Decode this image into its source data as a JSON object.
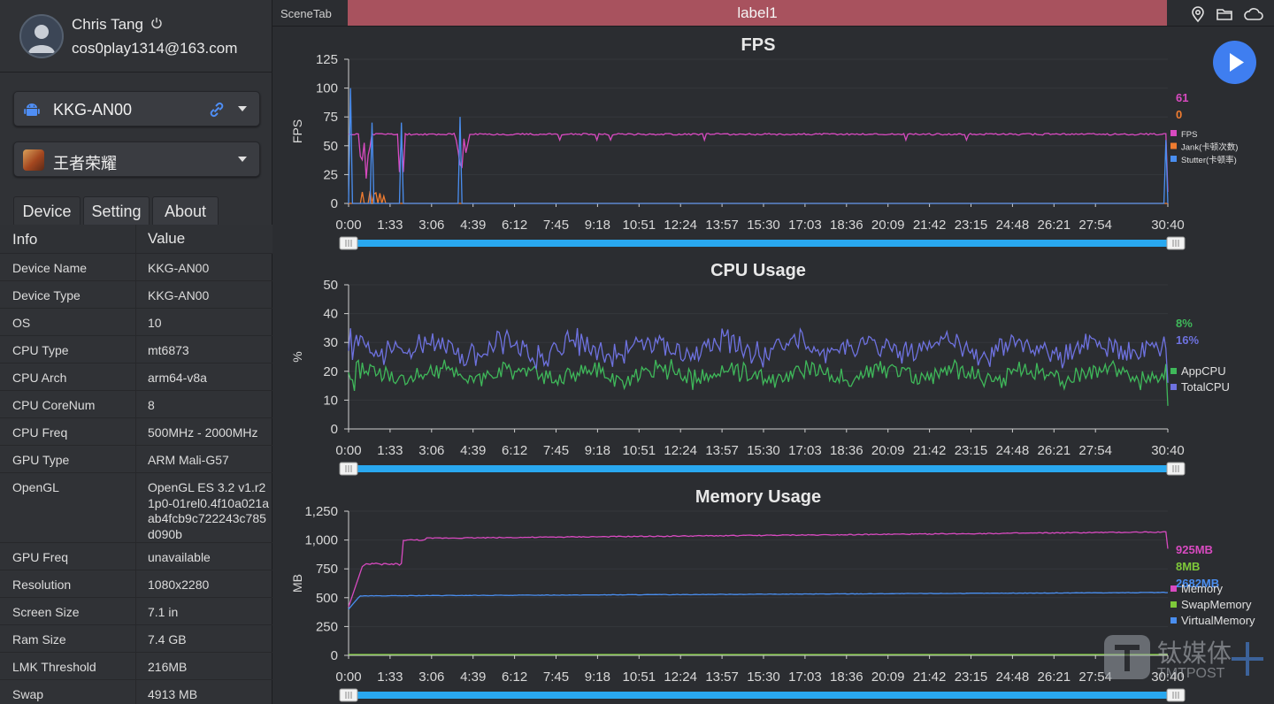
{
  "user": {
    "name": "Chris Tang",
    "email": "cos0play1314@163.com"
  },
  "device_select": {
    "label": "KKG-AN00"
  },
  "app_select": {
    "label": "王者荣耀"
  },
  "tabs": [
    {
      "label": "Device"
    },
    {
      "label": "Setting"
    },
    {
      "label": "About"
    }
  ],
  "info_table": {
    "headers": {
      "key": "Info",
      "value": "Value"
    },
    "rows": [
      {
        "key": "Device Name",
        "value": "KKG-AN00"
      },
      {
        "key": "Device Type",
        "value": "KKG-AN00"
      },
      {
        "key": "OS",
        "value": "10"
      },
      {
        "key": "CPU Type",
        "value": "mt6873"
      },
      {
        "key": "CPU Arch",
        "value": "arm64-v8a"
      },
      {
        "key": "CPU CoreNum",
        "value": "8"
      },
      {
        "key": "CPU Freq",
        "value": "500MHz - 2000MHz"
      },
      {
        "key": "GPU Type",
        "value": "ARM Mali-G57"
      },
      {
        "key": "OpenGL",
        "value": "OpenGL ES 3.2 v1.r21p0-01rel0.4f10a021aab4fcb9c722243c785d090b"
      },
      {
        "key": "GPU Freq",
        "value": "unavailable"
      },
      {
        "key": "Resolution",
        "value": "1080x2280"
      },
      {
        "key": "Screen Size",
        "value": "7.1 in"
      },
      {
        "key": "Ram Size",
        "value": "7.4 GB"
      },
      {
        "key": "LMK Threshold",
        "value": "216MB"
      },
      {
        "key": "Swap",
        "value": "4913 MB"
      }
    ]
  },
  "topbar": {
    "scene_tab": "SceneTab",
    "label": "label1",
    "icons": [
      "location-icon",
      "folder-icon",
      "cloud-icon"
    ]
  },
  "colors": {
    "fps": "#d84ac0",
    "jank": "#f07c30",
    "stutter": "#4a8ef0",
    "app_cpu": "#3fb85a",
    "total_cpu": "#6e72e0",
    "memory": "#d84ac0",
    "swap": "#7ec93a",
    "virtual": "#4a8ef0",
    "label_bar": "#a8525e",
    "slider": "#29a8f0"
  },
  "time_ticks": [
    "0:00",
    "1:33",
    "3:06",
    "4:39",
    "6:12",
    "7:45",
    "9:18",
    "10:51",
    "12:24",
    "13:57",
    "15:30",
    "17:03",
    "18:36",
    "20:09",
    "21:42",
    "23:15",
    "24:48",
    "26:21",
    "27:54",
    "30:40"
  ],
  "chart_data": [
    {
      "type": "line",
      "title": "FPS",
      "ylabel": "FPS",
      "ylim": [
        0,
        125
      ],
      "yticks": [
        "0",
        "25",
        "50",
        "75",
        "100",
        "125"
      ],
      "current_values": [
        "61",
        "0"
      ],
      "series": [
        {
          "name": "FPS",
          "baseline": 60
        },
        {
          "name": "Jank(卡顿次数)",
          "baseline": 0
        },
        {
          "name": "Stutter(卡顿率)",
          "baseline": 0
        }
      ]
    },
    {
      "type": "line",
      "title": "CPU Usage",
      "ylabel": "%",
      "ylim": [
        0,
        50
      ],
      "yticks": [
        "0",
        "10",
        "20",
        "30",
        "40",
        "50"
      ],
      "current_values": [
        "8%",
        "16%"
      ],
      "series": [
        {
          "name": "AppCPU",
          "baseline": 19
        },
        {
          "name": "TotalCPU",
          "baseline": 28
        }
      ]
    },
    {
      "type": "line",
      "title": "Memory Usage",
      "ylabel": "MB",
      "ylim": [
        0,
        1250
      ],
      "yticks": [
        "0",
        "250",
        "500",
        "750",
        "1,000",
        "1,250"
      ],
      "current_values": [
        "925MB",
        "8MB",
        "2682MB"
      ],
      "series": [
        {
          "name": "Memory",
          "baseline": 1040
        },
        {
          "name": "SwapMemory",
          "baseline": 0
        },
        {
          "name": "VirtualMemory",
          "baseline": 540
        }
      ]
    }
  ],
  "watermark": {
    "line1": "钛媒体",
    "line2": "TMTPOST"
  }
}
